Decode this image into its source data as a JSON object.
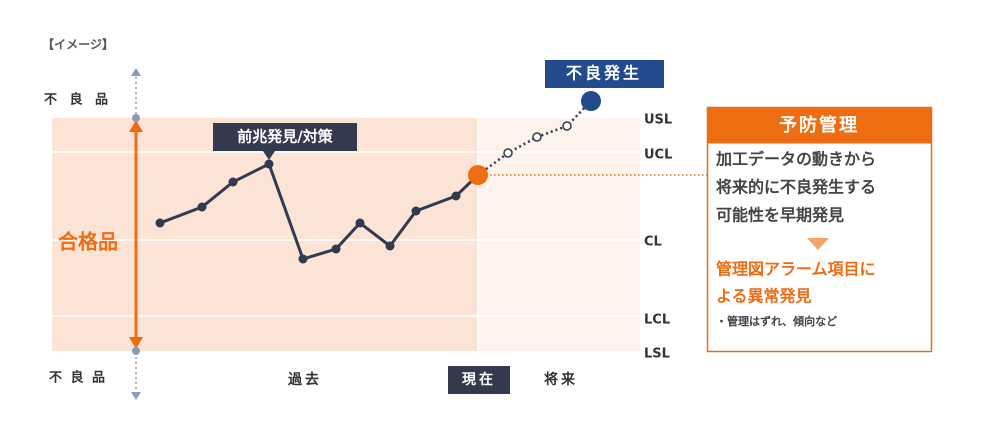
{
  "header": {
    "label": "【イメージ】"
  },
  "left_labels": {
    "top": "不 良 品",
    "middle": "合格品",
    "bottom": "不 良 品"
  },
  "callouts": {
    "sign": "前兆発見/対策",
    "defect": "不良発生"
  },
  "limits": [
    "USL",
    "UCL",
    "CL",
    "LCL",
    "LSL"
  ],
  "time_labels": {
    "past": "過去",
    "now": "現在",
    "future": "将来"
  },
  "panel": {
    "title": "予防管理",
    "body": [
      "加工データの動きから",
      "将来的に不良発生する",
      "可能性を早期発見"
    ],
    "highlight": [
      "管理図アラーム項目に",
      "よる異常発見"
    ],
    "note": "・管理はずれ、傾向など"
  }
}
